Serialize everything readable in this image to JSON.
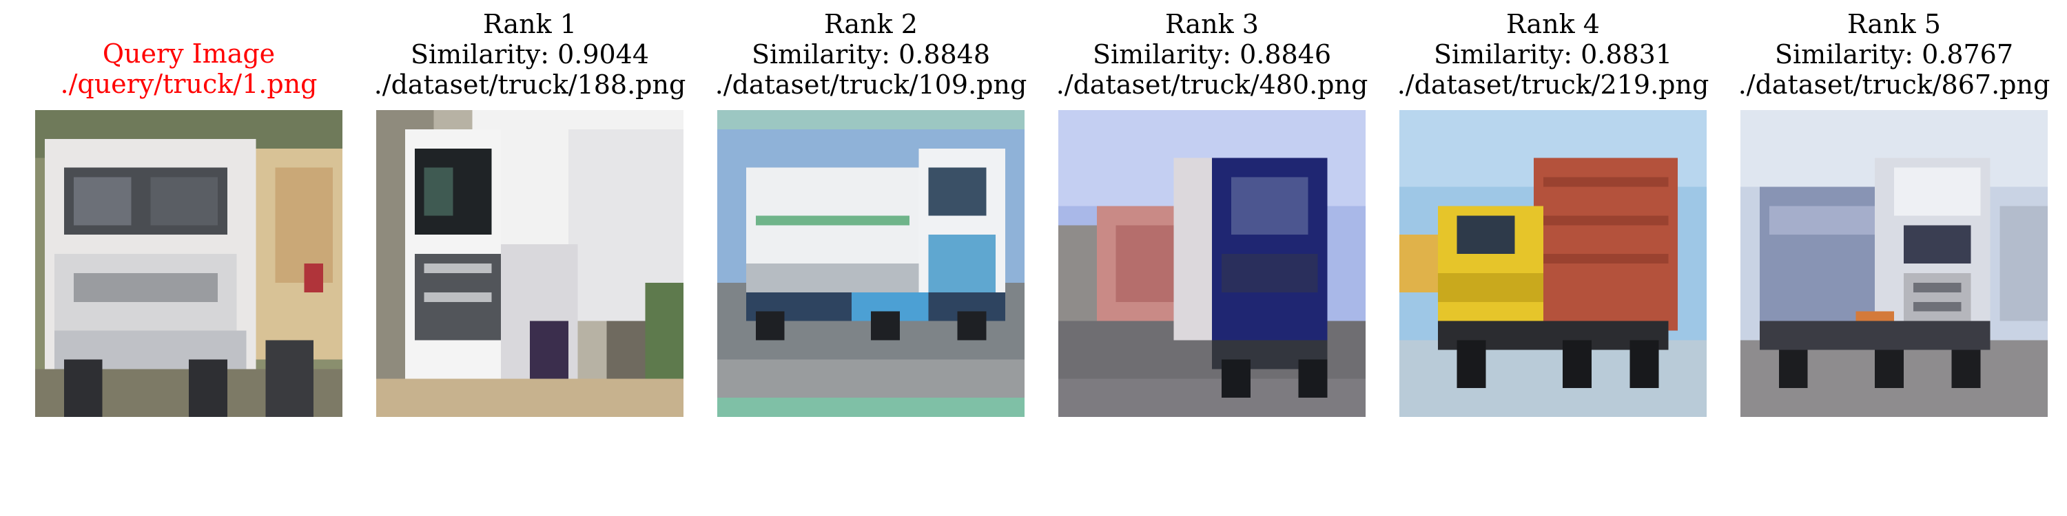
{
  "query": {
    "title": "Query Image",
    "path": "./query/truck/1.png",
    "color": "#ff0000"
  },
  "results": [
    {
      "rank_label": "Rank 1",
      "similarity_label": "Similarity: 0.9044",
      "path": "./dataset/truck/188.png"
    },
    {
      "rank_label": "Rank 2",
      "similarity_label": "Similarity: 0.8848",
      "path": "./dataset/truck/109.png"
    },
    {
      "rank_label": "Rank 3",
      "similarity_label": "Similarity: 0.8846",
      "path": "./dataset/truck/480.png"
    },
    {
      "rank_label": "Rank 4",
      "similarity_label": "Similarity: 0.8831",
      "path": "./dataset/truck/219.png"
    },
    {
      "rank_label": "Rank 5",
      "similarity_label": "Similarity: 0.8767",
      "path": "./dataset/truck/867.png"
    }
  ]
}
